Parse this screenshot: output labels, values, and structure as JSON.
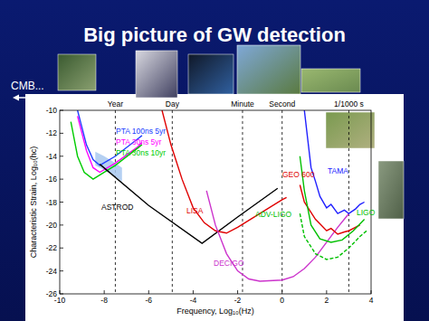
{
  "slide": {
    "title": "Big picture of GW detection",
    "note": "CMB..."
  },
  "chart_data": {
    "type": "line",
    "x_label": "Frequency, Log₁₀(Hz)",
    "y_label": "Characteristic Strain, Log₁₀(hc)",
    "xlim": [
      -10,
      4
    ],
    "ylim": [
      -26,
      -10
    ],
    "xticks": [
      -10,
      -8,
      -6,
      -4,
      -2,
      0,
      2,
      4
    ],
    "yticks": [
      -26,
      -24,
      -22,
      -20,
      -18,
      -16,
      -14,
      -12,
      -10
    ],
    "grid": false,
    "time_markers": [
      {
        "text": "Year",
        "x": -7.5
      },
      {
        "text": "Day",
        "x": -4.94
      },
      {
        "text": "Minute",
        "x": -1.78
      },
      {
        "text": "Second",
        "x": 0
      },
      {
        "text": "1/1000 s",
        "x": 3
      }
    ],
    "series": [
      {
        "name": "PTA 100ns 5yr",
        "color": "#2040ff",
        "line_style": "solid",
        "x": [
          -9.2,
          -8.8,
          -8.5,
          -8.2,
          -7.5,
          -6.5,
          -6.3
        ],
        "values": [
          -10,
          -13,
          -14.3,
          -14.8,
          -14,
          -12.5,
          -12.2
        ]
      },
      {
        "name": "PTA 30ns 5yr",
        "color": "#ff00ff",
        "line_style": "solid",
        "x": [
          -9.2,
          -8.8,
          -8.5,
          -8.2,
          -7.5,
          -6.5,
          -6.3
        ],
        "values": [
          -10.5,
          -13.5,
          -15,
          -15.4,
          -14.6,
          -13.2,
          -12.8
        ]
      },
      {
        "name": "PTA 30ns 10yr",
        "color": "#00cc00",
        "line_style": "solid",
        "x": [
          -9.5,
          -9.2,
          -8.9,
          -8.5,
          -7.5,
          -6.5,
          -6.3
        ],
        "values": [
          -11,
          -14,
          -15.4,
          -16,
          -14.8,
          -13.3,
          -13
        ]
      },
      {
        "name": "ASTROD",
        "color": "#000000",
        "line_style": "solid",
        "x": [
          -8.2,
          -6,
          -3.6,
          -2,
          -0.2
        ],
        "values": [
          -14.7,
          -18.3,
          -21.6,
          -19.3,
          -16.8
        ]
      },
      {
        "name": "LISA",
        "color": "#e00000",
        "line_style": "solid",
        "x": [
          -5.4,
          -5,
          -4.5,
          -4,
          -3.5,
          -3,
          -2.5,
          -2,
          -1,
          0,
          0.2
        ],
        "values": [
          -10,
          -13,
          -16,
          -18.5,
          -19.8,
          -20.5,
          -20.7,
          -20.2,
          -19,
          -17.8,
          -17.6
        ]
      },
      {
        "name": "DECIGO",
        "color": "#cc33cc",
        "line_style": "solid",
        "x": [
          -3.4,
          -3,
          -2.5,
          -2,
          -1.5,
          -1,
          0,
          0.5,
          1,
          1.5,
          2,
          2.5,
          3
        ],
        "values": [
          -17,
          -20,
          -22.5,
          -24,
          -24.7,
          -24.9,
          -24.8,
          -24.5,
          -23.8,
          -22.8,
          -21.5,
          -20.2,
          -19
        ]
      },
      {
        "name": "GEO 600",
        "color": "#e00000",
        "line_style": "solid",
        "x": [
          0.8,
          1,
          1.2,
          1.5,
          1.7,
          2,
          2.2,
          2.5,
          2.8,
          3,
          3.3,
          3.5
        ],
        "values": [
          -16.5,
          -18,
          -18.6,
          -19.5,
          -19.9,
          -20.5,
          -20.3,
          -20.8,
          -20.6,
          -20.5,
          -20.2,
          -20
        ]
      },
      {
        "name": "TAMA",
        "color": "#2020ff",
        "line_style": "solid",
        "x": [
          1,
          1.15,
          1.3,
          1.5,
          1.7,
          2,
          2.2,
          2.5,
          2.8,
          3,
          3.3,
          3.5,
          3.7
        ],
        "values": [
          -10,
          -12.5,
          -15,
          -16.2,
          -17.5,
          -18.5,
          -18.2,
          -19,
          -18.7,
          -19,
          -18.6,
          -18.2,
          -18
        ]
      },
      {
        "name": "LIGO",
        "color": "#00c000",
        "line_style": "solid",
        "x": [
          0.8,
          1,
          1.3,
          1.7,
          2.2,
          2.7,
          3.2,
          3.7
        ],
        "values": [
          -14,
          -17,
          -20,
          -21.2,
          -21.5,
          -21.3,
          -20.5,
          -19.5
        ]
      },
      {
        "name": "ADV-LIGO",
        "color": "#00c000",
        "line_style": "dashed",
        "x": [
          0.8,
          1,
          1.5,
          2,
          2.5,
          3,
          3.5,
          3.8
        ],
        "values": [
          -19,
          -21,
          -22.5,
          -23,
          -22.8,
          -22,
          -21,
          -20.5
        ]
      },
      {
        "type": "area",
        "color": "#a8c8f0",
        "x": [
          -8.4,
          -8,
          -7.5,
          -7.2
        ],
        "values": [
          -14.8,
          -15.2,
          -15.8,
          -16.2
        ],
        "upper": [
          -13.6,
          -14,
          -14.6,
          -15
        ]
      }
    ]
  }
}
